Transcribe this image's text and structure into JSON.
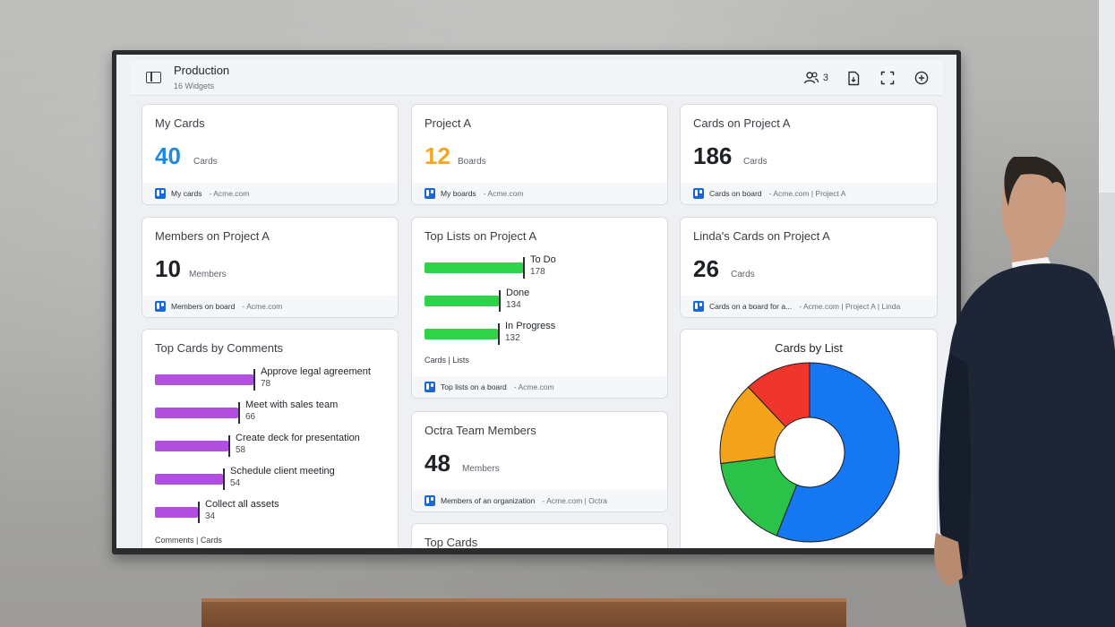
{
  "dashboard": {
    "title": "Production",
    "subtitle": "16 Widgets",
    "members_count": "3"
  },
  "cards": {
    "my_cards": {
      "title": "My Cards",
      "value": "40",
      "unit": "Cards",
      "foot_label": "My cards",
      "foot_source": "- Acme.com",
      "value_color": "#1d8ae0"
    },
    "project_a": {
      "title": "Project A",
      "value": "12",
      "unit": "Boards",
      "foot_label": "My boards",
      "foot_source": "- Acme.com",
      "value_color": "#f5a623"
    },
    "cards_on_project_a": {
      "title": "Cards on Project A",
      "value": "186",
      "unit": "Cards",
      "foot_label": "Cards on board",
      "foot_source": "- Acme.com | Project A"
    },
    "members_on_project_a": {
      "title": "Members on Project A",
      "value": "10",
      "unit": "Members",
      "foot_label": "Members on board",
      "foot_source": "- Acme.com"
    },
    "lindas_cards": {
      "title": "Linda's Cards on Project A",
      "value": "26",
      "unit": "Cards",
      "foot_label": "Cards on a board for a...",
      "foot_source": "- Acme.com | Project A | Linda"
    },
    "octra_team": {
      "title": "Octra Team Members",
      "value": "48",
      "unit": "Members",
      "foot_label": "Members of an organization",
      "foot_source": "- Acme.com | Octra"
    },
    "top_cards": {
      "title": "Top Cards"
    }
  },
  "top_lists": {
    "title": "Top Lists on Project A",
    "axis_caption": "Cards  |  Lists",
    "foot_label": "Top lists on a board",
    "foot_source": "- Acme.com",
    "color": "#2fd34a",
    "max": 178,
    "items": [
      {
        "label": "To Do",
        "value": "178"
      },
      {
        "label": "Done",
        "value": "134"
      },
      {
        "label": "In Progress",
        "value": "132"
      }
    ]
  },
  "top_cards_comments": {
    "title": "Top Cards by Comments",
    "axis_caption": "Comments | Cards",
    "color": "#b24fe0",
    "max": 78,
    "items": [
      {
        "label": "Approve legal agreement",
        "value": "78"
      },
      {
        "label": "Meet with sales team",
        "value": "66"
      },
      {
        "label": "Create deck for presentation",
        "value": "58"
      },
      {
        "label": "Schedule client meeting",
        "value": "54"
      },
      {
        "label": "Collect all assets",
        "value": "34"
      }
    ]
  },
  "chart_data": {
    "type": "pie",
    "title": "Cards by List",
    "slices": [
      {
        "value": 56,
        "color": "#1677f2"
      },
      {
        "value": 17,
        "color": "#2bc24a"
      },
      {
        "value": 15,
        "color": "#f5a31a"
      },
      {
        "value": 12,
        "color": "#f0352c"
      }
    ]
  }
}
